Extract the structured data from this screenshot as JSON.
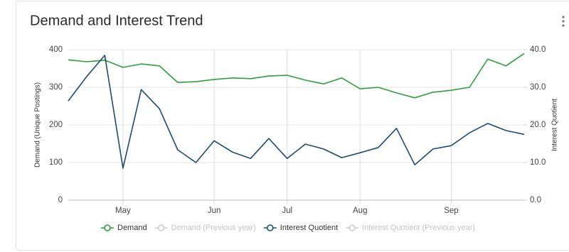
{
  "chart_data": {
    "type": "line",
    "title": "Demand and Interest Trend",
    "categories": [
      null,
      null,
      null,
      "May",
      null,
      null,
      null,
      null,
      "Jun",
      null,
      null,
      null,
      "Jul",
      null,
      null,
      null,
      "Aug",
      null,
      null,
      null,
      null,
      "Sep",
      null,
      null,
      null,
      null
    ],
    "series": [
      {
        "name": "Demand",
        "color": "#2f9e3c",
        "axis": "y",
        "values": [
          373,
          368,
          372,
          353,
          362,
          357,
          313,
          315,
          321,
          325,
          323,
          330,
          332,
          319,
          309,
          325,
          296,
          300,
          285,
          272,
          287,
          292,
          300,
          375,
          357,
          390
        ]
      },
      {
        "name": "Demand (Previous year)",
        "color": "#cccccc",
        "visible": false
      },
      {
        "name": "Interest Quotient",
        "color": "#1d4a6e",
        "axis": "y2",
        "values": [
          26.4,
          32.8,
          38.5,
          8.5,
          29.4,
          24.3,
          13.4,
          10.0,
          15.8,
          12.8,
          11.1,
          16.4,
          11.1,
          14.9,
          13.6,
          11.3,
          12.6,
          14.0,
          19.1,
          9.4,
          13.6,
          14.5,
          17.9,
          20.4,
          18.5,
          17.5
        ]
      },
      {
        "name": "Interest Quotient (Previous year)",
        "color": "#cccccc",
        "visible": false
      }
    ],
    "ylabel": "Demand (Unique Postings)",
    "y2label": "Interest Quotient",
    "ylim": [
      0,
      400
    ],
    "yticks": [
      0,
      100,
      200,
      300,
      400
    ],
    "y2lim": [
      0,
      40
    ],
    "y2ticks": [
      {
        "value": 0,
        "label": "0.0"
      },
      {
        "value": 10,
        "label": "10.0"
      },
      {
        "value": 20,
        "label": "20.0"
      },
      {
        "value": 30,
        "label": "30.0"
      },
      {
        "value": 40,
        "label": "40.0"
      }
    ],
    "grid": true
  }
}
